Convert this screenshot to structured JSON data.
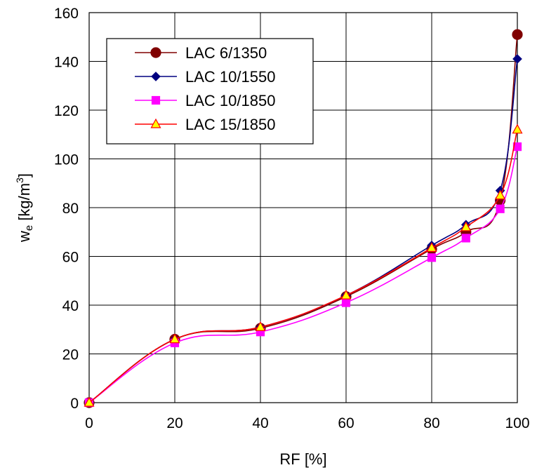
{
  "chart_data": {
    "type": "line",
    "xlabel": "RF [%]",
    "ylabel": {
      "main": "w",
      "sub": "e",
      "unit_pre": " [kg/m",
      "unit_sup": "3",
      "unit_post": "]"
    },
    "xlim": [
      0,
      100
    ],
    "ylim": [
      0,
      160
    ],
    "xticks": [
      0,
      20,
      40,
      60,
      80,
      100
    ],
    "yticks": [
      0,
      20,
      40,
      60,
      80,
      100,
      120,
      140,
      160
    ],
    "grid": true,
    "legend_position": "top-left",
    "series": [
      {
        "name": "LAC 6/1350",
        "line_color": "#800000",
        "marker": "circle",
        "marker_fill": "#800000",
        "marker_stroke": "#800000",
        "x": [
          0,
          20,
          40,
          60,
          80,
          88,
          96,
          100
        ],
        "y": [
          0,
          26,
          30.5,
          43.5,
          63,
          70,
          83,
          151
        ]
      },
      {
        "name": "LAC 10/1550",
        "line_color": "#000080",
        "marker": "diamond",
        "marker_fill": "#000080",
        "marker_stroke": "#000080",
        "x": [
          0,
          20,
          40,
          60,
          80,
          88,
          96,
          100
        ],
        "y": [
          0,
          26,
          31,
          44,
          64.5,
          73,
          87,
          141
        ]
      },
      {
        "name": "LAC 10/1850",
        "line_color": "#ff00ff",
        "marker": "square",
        "marker_fill": "#ff00ff",
        "marker_stroke": "#ff00ff",
        "x": [
          0,
          20,
          40,
          60,
          80,
          88,
          96,
          100
        ],
        "y": [
          0,
          24.5,
          29,
          41,
          59.5,
          67.5,
          79.5,
          105
        ]
      },
      {
        "name": "LAC 15/1850",
        "line_color": "#ff0000",
        "marker": "triangle",
        "marker_fill": "#ffff00",
        "marker_stroke": "#ff0000",
        "x": [
          0,
          20,
          40,
          60,
          80,
          88,
          96,
          100
        ],
        "y": [
          0,
          26,
          31,
          44,
          63.5,
          72,
          85,
          112
        ]
      }
    ]
  }
}
